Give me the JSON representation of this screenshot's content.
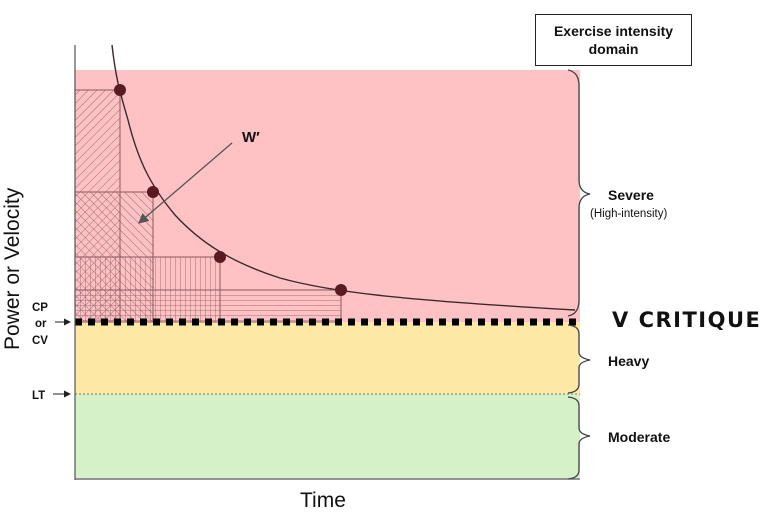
{
  "domain_box": {
    "line1": "Exercise intensity",
    "line2": "domain"
  },
  "axes": {
    "y_label": "Power or Velocity",
    "x_label": "Time"
  },
  "markers": {
    "cp_line1": "CP",
    "cp_line2": "or",
    "cp_line3": "CV",
    "lt": "LT"
  },
  "annotation": {
    "w_prime": "W′"
  },
  "zones": [
    {
      "name": "Severe",
      "sub": "(High-intensity)",
      "color": "#ffc2c4"
    },
    {
      "name": "Heavy",
      "sub": "",
      "color": "#fde8a6"
    },
    {
      "name": "Moderate",
      "sub": "",
      "color": "#d4f1c8"
    }
  ],
  "overlay": {
    "text": "V CRITIQUE"
  },
  "colors": {
    "curve": "#3a2a2a",
    "points": "#5a1a22",
    "hatch": "#8a5a5e",
    "critical_line": "#000000"
  }
}
